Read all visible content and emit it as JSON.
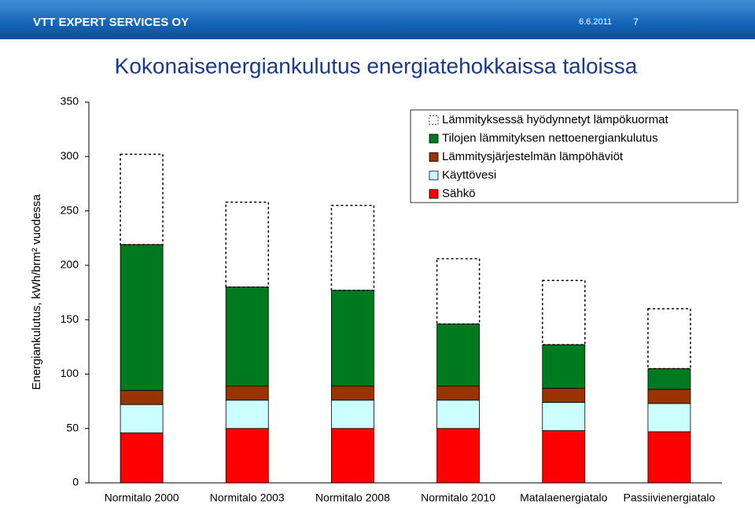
{
  "header": {
    "organization": "VTT EXPERT SERVICES OY",
    "date": "6.6.2011",
    "page": "7"
  },
  "chart_data": {
    "type": "stacked_bar",
    "title": "Kokonaisenergiankulutus energiatehokkaissa taloissa",
    "ylabel": "Energiankulutus, kWh/brm² vuodessa",
    "categories": [
      "Normitalo 2000",
      "Normitalo 2003",
      "Normitalo 2008",
      "Normitalo 2010",
      "Matalaenergiatalo",
      "Passiivienergiatalo"
    ],
    "series": [
      {
        "name": "Lämmityksessä hyödynnetyt lämpökuormat",
        "color": "#ffffff",
        "border": "dotted",
        "values": [
          83,
          78,
          78,
          60,
          59,
          55
        ]
      },
      {
        "name": "Tilojen lämmityksen nettoenergiankulutus",
        "color": "#007a1f",
        "values": [
          134,
          91,
          88,
          57,
          40,
          19
        ]
      },
      {
        "name": "Lämmitysjärjestelmän lämpöhäviöt",
        "color": "#993300",
        "values": [
          13,
          13,
          13,
          13,
          13,
          13
        ]
      },
      {
        "name": "Käyttövesi",
        "color": "#ccffff",
        "values": [
          26,
          26,
          26,
          26,
          26,
          26
        ]
      },
      {
        "name": "Sähkö",
        "color": "#ff0000",
        "values": [
          46,
          50,
          50,
          50,
          48,
          47
        ]
      }
    ],
    "ylim": [
      0,
      350
    ],
    "yticks": [
      0,
      50,
      100,
      150,
      200,
      250,
      300,
      350
    ],
    "grid": false,
    "legend": "top-right"
  }
}
